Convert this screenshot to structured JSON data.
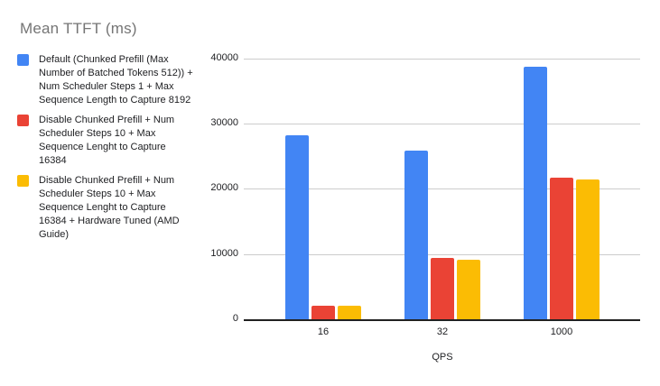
{
  "title": "Mean TTFT (ms)",
  "colors": {
    "series_blue": "#4285F4",
    "series_red": "#EA4335",
    "series_yellow": "#FBBC04",
    "title_text": "#757575",
    "gridline": "#cccccc",
    "axis_line": "#212121"
  },
  "legend": {
    "position": "left",
    "items": [
      {
        "label": "Default (Chunked Prefill (Max Number of Batched Tokens 512)) + Num Scheduler Steps 1 + Max Sequence Length to Capture 8192",
        "color": "#4285F4"
      },
      {
        "label": "Disable Chunked Prefill + Num Scheduler Steps 10 + Max Sequence Lenght to Capture 16384",
        "color": "#EA4335"
      },
      {
        "label": "Disable Chunked Prefill + Num Scheduler Steps 10 + Max Sequence Lenght to Capture 16384 + Hardware Tuned (AMD Guide)",
        "color": "#FBBC04"
      }
    ]
  },
  "chart_data": {
    "type": "bar",
    "title": "Mean TTFT (ms)",
    "xlabel": "QPS",
    "ylabel": "",
    "categories": [
      "16",
      "32",
      "1000"
    ],
    "series": [
      {
        "name": "Default (Chunked Prefill (Max Number of Batched Tokens 512)) + Num Scheduler Steps 1 + Max Sequence Length to Capture 8192",
        "color": "#4285F4",
        "values": [
          28200,
          25900,
          38800
        ]
      },
      {
        "name": "Disable Chunked Prefill + Num Scheduler Steps 10 + Max Sequence Lenght to Capture 16384",
        "color": "#EA4335",
        "values": [
          2100,
          9400,
          21800
        ]
      },
      {
        "name": "Disable Chunked Prefill + Num Scheduler Steps 10 + Max Sequence Lenght to Capture 16384 + Hardware Tuned (AMD Guide)",
        "color": "#FBBC04",
        "values": [
          2100,
          9200,
          21400
        ]
      }
    ],
    "ylim": [
      0,
      40000
    ],
    "yticks": [
      0,
      10000,
      20000,
      30000,
      40000
    ],
    "ytick_labels": [
      "0",
      "10000",
      "20000",
      "30000",
      "40000"
    ],
    "grid": true,
    "legend_position": "left"
  }
}
